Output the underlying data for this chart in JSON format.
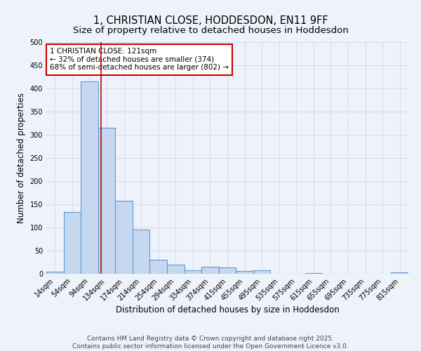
{
  "title": "1, CHRISTIAN CLOSE, HODDESDON, EN11 9FF",
  "subtitle": "Size of property relative to detached houses in Hoddesdon",
  "xlabel": "Distribution of detached houses by size in Hoddesdon",
  "ylabel": "Number of detached properties",
  "categories": [
    "14sqm",
    "54sqm",
    "94sqm",
    "134sqm",
    "174sqm",
    "214sqm",
    "254sqm",
    "294sqm",
    "334sqm",
    "374sqm",
    "415sqm",
    "455sqm",
    "495sqm",
    "535sqm",
    "575sqm",
    "615sqm",
    "655sqm",
    "695sqm",
    "735sqm",
    "775sqm",
    "815sqm"
  ],
  "values": [
    5,
    133,
    415,
    315,
    158,
    95,
    30,
    19,
    8,
    15,
    14,
    6,
    7,
    0,
    0,
    2,
    0,
    0,
    0,
    0,
    3
  ],
  "bar_color": "#c5d8f0",
  "bar_edge_color": "#5b9bd5",
  "grid_color": "#d0d8e8",
  "background_color": "#eef2fb",
  "red_line_x": 2.68,
  "annotation_text": "1 CHRISTIAN CLOSE: 121sqm\n← 32% of detached houses are smaller (374)\n68% of semi-detached houses are larger (802) →",
  "annotation_box_color": "white",
  "annotation_box_edge_color": "#cc0000",
  "ylim": [
    0,
    500
  ],
  "yticks": [
    0,
    50,
    100,
    150,
    200,
    250,
    300,
    350,
    400,
    450,
    500
  ],
  "footer_text": "Contains HM Land Registry data © Crown copyright and database right 2025.\nContains public sector information licensed under the Open Government Licence v3.0.",
  "title_fontsize": 10.5,
  "subtitle_fontsize": 9.5,
  "tick_fontsize": 7,
  "label_fontsize": 8.5,
  "footer_fontsize": 6.5,
  "annot_fontsize": 7.5
}
